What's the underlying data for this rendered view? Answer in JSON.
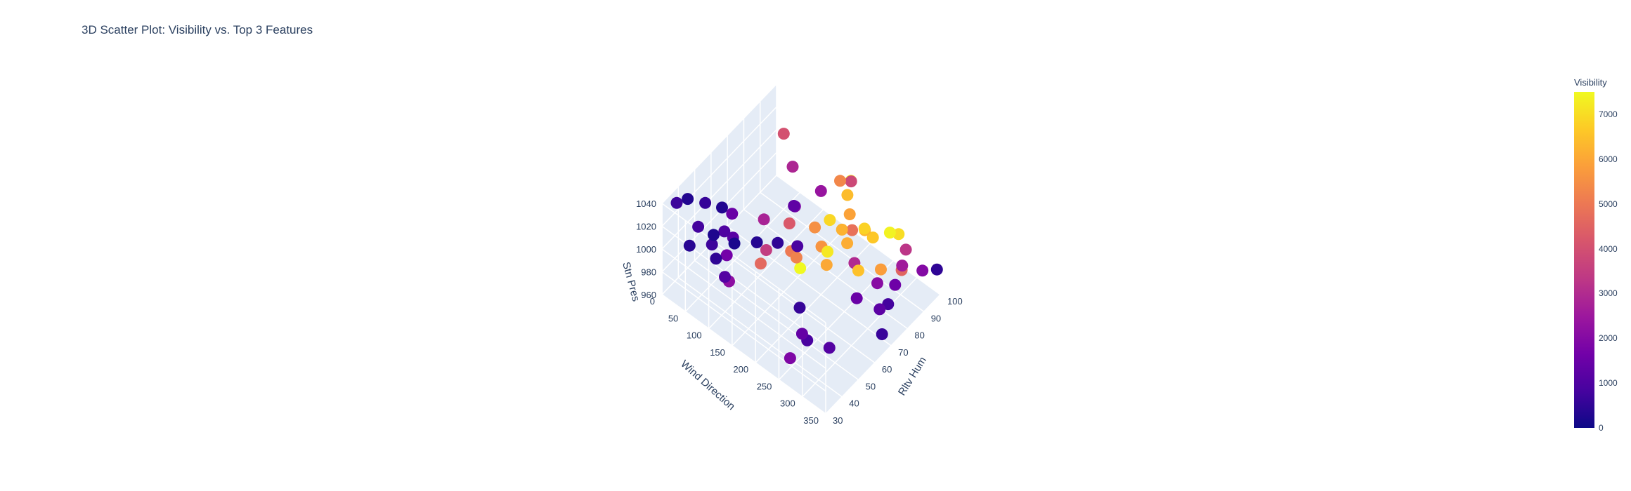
{
  "chart_data": {
    "type": "scatter",
    "title": "3D Scatter Plot: Visibility vs. Top 3 Features",
    "axes": {
      "x": {
        "label": "Rltv Hum",
        "ticks": [
          "30",
          "40",
          "50",
          "60",
          "70",
          "80",
          "90",
          "100"
        ],
        "range": [
          30,
          100
        ]
      },
      "y": {
        "label": "Wind Direction",
        "ticks": [
          "0",
          "50",
          "100",
          "150",
          "200",
          "250",
          "300",
          "350"
        ],
        "range": [
          0,
          350
        ]
      },
      "z": {
        "label": "Stn Pres",
        "ticks": [
          "960",
          "980",
          "1000",
          "1020",
          "1040"
        ],
        "range": [
          960,
          1040
        ]
      }
    },
    "colorbar": {
      "title": "Visibility",
      "ticks": [
        "0",
        "1000",
        "2000",
        "3000",
        "4000",
        "5000",
        "6000",
        "7000"
      ],
      "range": [
        0,
        7500
      ],
      "colorscale": [
        "#0d0887",
        "#46039f",
        "#7201a8",
        "#9c179e",
        "#bd3786",
        "#d8576b",
        "#ed7953",
        "#fb9f3a",
        "#fdca26",
        "#f0f921"
      ]
    },
    "series": [
      {
        "x_column": "Rltv Hum",
        "y_column": "Wind Direction",
        "z_column": "Stn Pres",
        "color_column": "Visibility",
        "points": [
          [
            35,
            60,
            1030,
            800
          ],
          [
            42,
            110,
            1025,
            1200
          ],
          [
            48,
            160,
            1020,
            3500
          ],
          [
            55,
            200,
            1015,
            5200
          ],
          [
            62,
            240,
            1010,
            6000
          ],
          [
            70,
            280,
            1005,
            6500
          ],
          [
            78,
            300,
            1000,
            5800
          ],
          [
            85,
            320,
            995,
            4500
          ],
          [
            92,
            340,
            990,
            2000
          ],
          [
            98,
            350,
            985,
            500
          ],
          [
            40,
            20,
            1035,
            300
          ],
          [
            45,
            40,
            1030,
            600
          ],
          [
            50,
            80,
            1025,
            1500
          ],
          [
            58,
            120,
            1020,
            2800
          ],
          [
            65,
            150,
            1015,
            4200
          ],
          [
            72,
            180,
            1010,
            5500
          ],
          [
            80,
            210,
            1005,
            6200
          ],
          [
            88,
            230,
            1000,
            6800
          ],
          [
            95,
            260,
            995,
            7400
          ],
          [
            33,
            300,
            1005,
            900
          ],
          [
            38,
            330,
            1000,
            1100
          ],
          [
            44,
            10,
            985,
            400
          ],
          [
            52,
            30,
            980,
            700
          ],
          [
            60,
            50,
            975,
            200
          ],
          [
            68,
            70,
            970,
            350
          ],
          [
            75,
            90,
            965,
            500
          ],
          [
            82,
            100,
            990,
            1300
          ],
          [
            90,
            130,
            1000,
            2400
          ],
          [
            97,
            170,
            1010,
            3800
          ],
          [
            36,
            190,
            1035,
            4600
          ],
          [
            46,
            220,
            1040,
            5000
          ],
          [
            56,
            250,
            1038,
            5600
          ],
          [
            66,
            270,
            1032,
            6100
          ],
          [
            76,
            290,
            1028,
            6600
          ],
          [
            86,
            310,
            1022,
            7000
          ],
          [
            94,
            180,
            1018,
            7300
          ],
          [
            31,
            140,
            1012,
            2200
          ],
          [
            41,
            100,
            1008,
            1700
          ],
          [
            51,
            60,
            1002,
            1000
          ],
          [
            61,
            20,
            996,
            300
          ],
          [
            71,
            340,
            992,
            800
          ],
          [
            81,
            320,
            988,
            1600
          ],
          [
            91,
            300,
            984,
            2600
          ],
          [
            99,
            280,
            980,
            3300
          ],
          [
            34,
            260,
            976,
            1900
          ],
          [
            47,
            240,
            972,
            1400
          ],
          [
            57,
            200,
            968,
            600
          ],
          [
            67,
            160,
            995,
            900
          ],
          [
            77,
            120,
            1003,
            1800
          ],
          [
            87,
            80,
            1011,
            2900
          ],
          [
            93,
            40,
            1019,
            4000
          ],
          [
            39,
            0,
            1027,
            700
          ],
          [
            49,
            350,
            1033,
            1500
          ],
          [
            59,
            310,
            1037,
            3000
          ],
          [
            69,
            270,
            1039,
            4800
          ],
          [
            79,
            230,
            1026,
            5900
          ],
          [
            89,
            190,
            1016,
            6400
          ],
          [
            96,
            150,
            1006,
            5300
          ],
          [
            37,
            110,
            998,
            1100
          ],
          [
            43,
            70,
            993,
            500
          ],
          [
            53,
            30,
            987,
            250
          ],
          [
            63,
            355,
            982,
            650
          ],
          [
            73,
            315,
            977,
            1250
          ],
          [
            83,
            275,
            973,
            2100
          ],
          [
            53,
            215,
            1013,
            7500
          ],
          [
            64,
            235,
            1017,
            7200
          ],
          [
            74,
            205,
            1021,
            6900
          ],
          [
            84,
            245,
            1009,
            6300
          ]
        ]
      }
    ],
    "legend": "none",
    "grid": true
  }
}
